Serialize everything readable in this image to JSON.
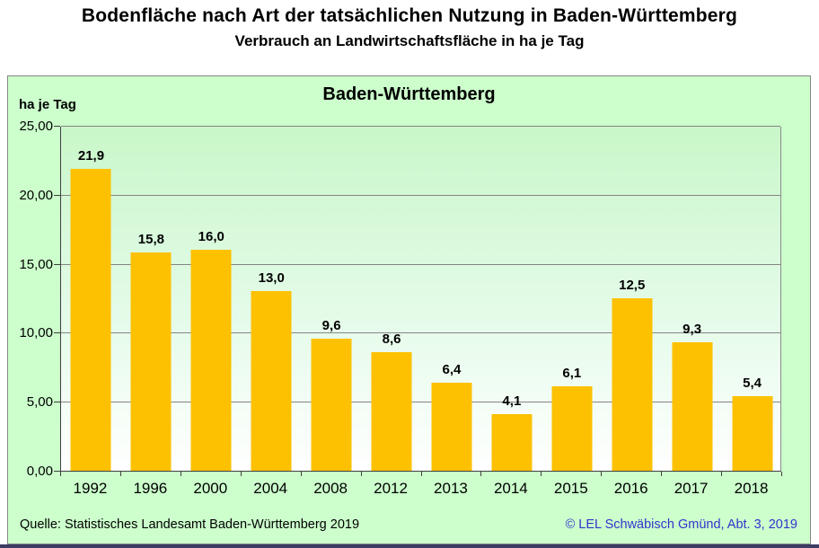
{
  "page": {
    "title": "Bodenfläche nach Art der tatsächlichen Nutzung in Baden-Württemberg",
    "subtitle": "Verbrauch an Landwirtschaftsfläche in ha je Tag"
  },
  "footer": {
    "source": "Quelle:  Statistisches Landesamt  Baden-Württemberg  2019",
    "copyright": "© LEL Schwäbisch Gmünd,  Abt. 3, 2019"
  },
  "colors": {
    "bar": "#FDC101",
    "panel_background": "#CCFFCC",
    "plot_gradient_top": "#C9F7C9",
    "plot_gradient_bottom": "#FFFFFF",
    "gridline": "#858585",
    "axis": "#3F3F3F",
    "copyright_text": "#3333CC",
    "bottom_strip": "#3C3C64"
  },
  "chart_data": {
    "type": "bar",
    "title": "Baden-Württemberg",
    "ylabel": "ha je Tag",
    "xlabel": "",
    "categories": [
      "1992",
      "1996",
      "2000",
      "2004",
      "2008",
      "2012",
      "2013",
      "2014",
      "2015",
      "2016",
      "2017",
      "2018"
    ],
    "values": [
      21.9,
      15.8,
      16.0,
      13.0,
      9.6,
      8.6,
      6.4,
      4.1,
      6.1,
      12.5,
      9.3,
      5.4
    ],
    "bar_labels": [
      "21,9",
      "15,8",
      "16,0",
      "13,0",
      "9,6",
      "8,6",
      "6,4",
      "4,1",
      "6,1",
      "12,5",
      "9,3",
      "5,4"
    ],
    "ylim": [
      0,
      25
    ],
    "ytick_step": 5,
    "ytick_labels": [
      "0,00",
      "5,00",
      "10,00",
      "15,00",
      "20,00",
      "25,00"
    ],
    "grid": true,
    "legend": false
  }
}
